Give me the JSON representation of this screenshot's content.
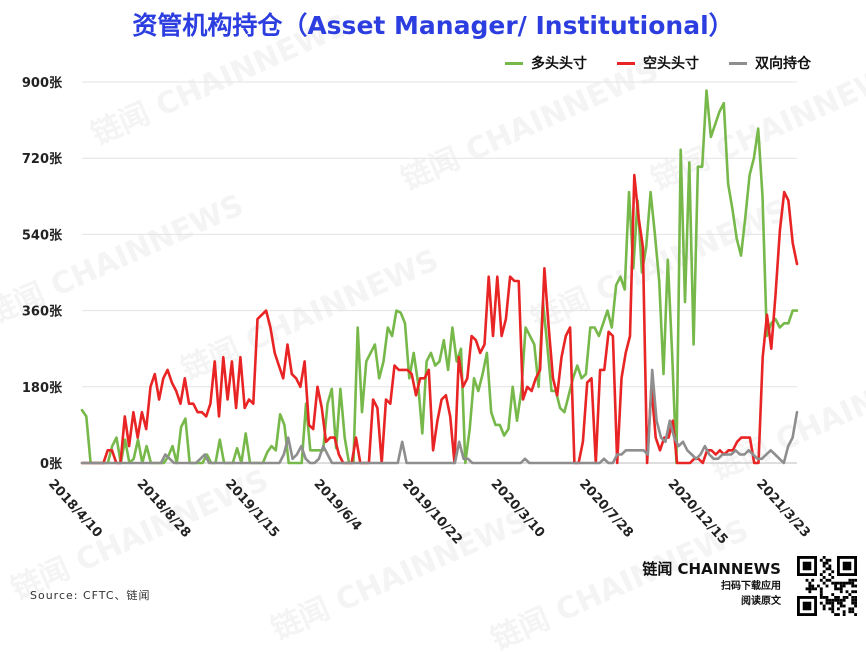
{
  "watermark_text": "链闻 CHAINNEWS",
  "source": "Source: CFTC、链闻",
  "brand": {
    "name": "链闻 CHAINNEWS",
    "line1": "扫码下载应用",
    "line2": "阅读原文",
    "qr_icon": "qr-code-icon"
  },
  "colors": {
    "long": "#77b84a",
    "short": "#e82424",
    "spread": "#8e8e8e",
    "title": "#2d3ee0"
  },
  "chart_data": {
    "type": "line",
    "title": "资管机构持仓（Asset Manager/ Institutional）",
    "xlabel": "",
    "ylabel": "",
    "ylim": [
      0,
      900
    ],
    "yticks": [
      "0张",
      "180张",
      "360张",
      "540张",
      "720张",
      "900张"
    ],
    "xticks": [
      "2018/4/10",
      "2018/8/28",
      "2019/1/15",
      "2019/6/4",
      "2019/10/22",
      "2020/3/10",
      "2020/7/28",
      "2020/12/15",
      "2021/3/23"
    ],
    "grid": true,
    "legend_position": "top-right",
    "series": [
      {
        "name": "多头头寸",
        "color": "#77b84a",
        "values": [
          125,
          110,
          0,
          0,
          0,
          0,
          0,
          40,
          60,
          0,
          55,
          0,
          10,
          55,
          0,
          40,
          0,
          0,
          0,
          0,
          15,
          40,
          0,
          85,
          105,
          0,
          0,
          0,
          0,
          20,
          0,
          0,
          55,
          0,
          0,
          0,
          35,
          0,
          70,
          0,
          0,
          0,
          0,
          25,
          40,
          30,
          115,
          90,
          0,
          0,
          0,
          0,
          140,
          30,
          30,
          30,
          30,
          140,
          175,
          35,
          175,
          60,
          0,
          0,
          320,
          120,
          240,
          260,
          280,
          200,
          240,
          320,
          300,
          360,
          355,
          330,
          200,
          260,
          190,
          70,
          240,
          260,
          230,
          240,
          290,
          220,
          320,
          240,
          270,
          0,
          80,
          200,
          170,
          210,
          260,
          120,
          90,
          90,
          65,
          80,
          180,
          100,
          170,
          320,
          300,
          280,
          180,
          380,
          280,
          170,
          170,
          130,
          120,
          160,
          200,
          230,
          200,
          210,
          320,
          320,
          300,
          330,
          360,
          320,
          420,
          440,
          410,
          640,
          460,
          620,
          450,
          510,
          640,
          540,
          430,
          210,
          480,
          260,
          0,
          740,
          380,
          710,
          280,
          700,
          700,
          880,
          770,
          800,
          830,
          850,
          660,
          600,
          530,
          490,
          580,
          680,
          720,
          790,
          630,
          300,
          330,
          340,
          320,
          330,
          330,
          360,
          360
        ]
      },
      {
        "name": "空头头寸",
        "color": "#e82424",
        "values": [
          0,
          0,
          0,
          0,
          0,
          0,
          30,
          30,
          0,
          0,
          110,
          40,
          120,
          60,
          120,
          80,
          180,
          210,
          150,
          200,
          220,
          190,
          170,
          140,
          200,
          140,
          140,
          120,
          120,
          110,
          140,
          240,
          110,
          250,
          150,
          240,
          130,
          250,
          130,
          150,
          140,
          340,
          350,
          360,
          320,
          260,
          230,
          200,
          280,
          210,
          200,
          180,
          240,
          90,
          80,
          180,
          130,
          50,
          60,
          60,
          20,
          0,
          0,
          0,
          60,
          0,
          0,
          0,
          150,
          130,
          0,
          150,
          140,
          230,
          220,
          220,
          220,
          210,
          160,
          200,
          200,
          220,
          30,
          100,
          150,
          160,
          110,
          0,
          250,
          180,
          200,
          300,
          290,
          260,
          280,
          440,
          300,
          440,
          300,
          340,
          440,
          430,
          430,
          150,
          180,
          170,
          200,
          220,
          460,
          320,
          200,
          160,
          250,
          300,
          320,
          0,
          0,
          50,
          190,
          200,
          0,
          220,
          220,
          310,
          300,
          0,
          200,
          260,
          300,
          680,
          580,
          510,
          0,
          180,
          60,
          30,
          60,
          60,
          100,
          0,
          0,
          0,
          0,
          10,
          10,
          0,
          30,
          30,
          20,
          30,
          20,
          30,
          30,
          50,
          60,
          60,
          60,
          0,
          0,
          250,
          350,
          270,
          400,
          550,
          640,
          620,
          520,
          470
        ]
      },
      {
        "name": "双向持仓",
        "color": "#8e8e8e",
        "values": [
          0,
          0,
          0,
          0,
          0,
          0,
          0,
          0,
          0,
          0,
          0,
          0,
          0,
          0,
          0,
          0,
          0,
          0,
          0,
          20,
          10,
          0,
          0,
          0,
          0,
          0,
          0,
          10,
          20,
          0,
          0,
          0,
          0,
          0,
          0,
          0,
          0,
          0,
          0,
          0,
          0,
          0,
          0,
          0,
          0,
          0,
          20,
          60,
          10,
          20,
          40,
          10,
          0,
          0,
          10,
          40,
          20,
          0,
          0,
          0,
          0,
          0,
          0,
          0,
          0,
          0,
          0,
          0,
          0,
          0,
          0,
          0,
          0,
          50,
          0,
          0,
          0,
          0,
          0,
          0,
          0,
          0,
          0,
          0,
          0,
          0,
          50,
          10,
          10,
          0,
          0,
          0,
          0,
          0,
          0,
          0,
          0,
          0,
          0,
          0,
          0,
          10,
          0,
          0,
          0,
          0,
          0,
          0,
          0,
          0,
          0,
          0,
          0,
          0,
          0,
          0,
          0,
          0,
          0,
          10,
          0,
          0,
          20,
          20,
          30,
          30,
          30,
          30,
          30,
          20,
          220,
          100,
          60,
          50,
          100,
          60,
          40,
          50,
          30,
          20,
          10,
          20,
          40,
          20,
          10,
          10,
          20,
          20,
          20,
          30,
          20,
          20,
          30,
          20,
          10,
          10,
          20,
          30,
          20,
          10,
          0,
          40,
          60,
          120
        ]
      }
    ]
  }
}
